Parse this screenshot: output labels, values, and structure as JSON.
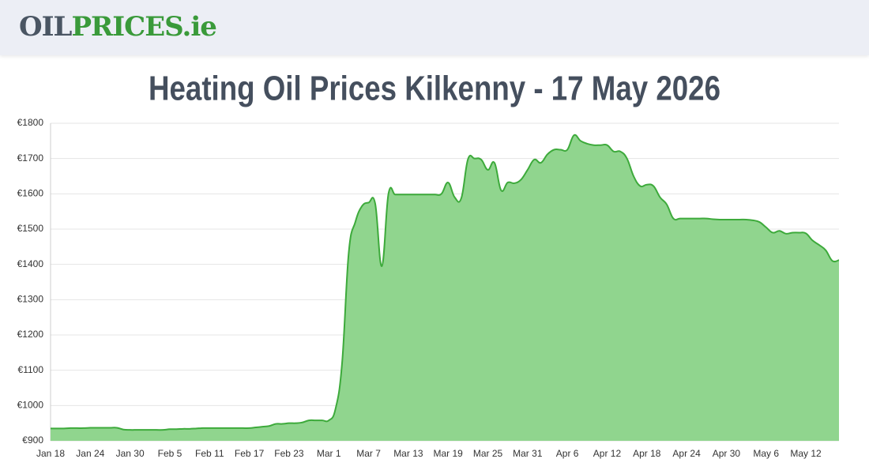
{
  "logo": {
    "part1": "OIL",
    "part2": "PRICES",
    "part3": ".ie"
  },
  "chart_data": {
    "type": "area",
    "title": "Heating Oil Prices Kilkenny - 17 May 2026",
    "color": "#3daa3b",
    "fill": "#90d58e",
    "grid": true,
    "ylim": [
      900,
      1800
    ],
    "yticks": [
      {
        "value": 900,
        "label": "€900"
      },
      {
        "value": 1000,
        "label": "€1000"
      },
      {
        "value": 1100,
        "label": "€1100"
      },
      {
        "value": 1200,
        "label": "€1200"
      },
      {
        "value": 1300,
        "label": "€1300"
      },
      {
        "value": 1400,
        "label": "€1400"
      },
      {
        "value": 1500,
        "label": "€1500"
      },
      {
        "value": 1600,
        "label": "€1600"
      },
      {
        "value": 1700,
        "label": "€1700"
      },
      {
        "value": 1800,
        "label": "€1800"
      }
    ],
    "categories": [
      "Jan 18",
      null,
      null,
      null,
      null,
      null,
      "Jan 24",
      null,
      null,
      null,
      null,
      null,
      "Jan 30",
      null,
      null,
      null,
      null,
      null,
      "Feb 5",
      null,
      null,
      null,
      null,
      null,
      "Feb 11",
      null,
      null,
      null,
      null,
      null,
      "Feb 17",
      null,
      null,
      null,
      null,
      null,
      "Feb 23",
      null,
      null,
      null,
      null,
      null,
      "Mar 1",
      null,
      null,
      null,
      null,
      null,
      "Mar 7",
      null,
      null,
      null,
      null,
      null,
      "Mar 13",
      null,
      null,
      null,
      null,
      null,
      "Mar 19",
      null,
      null,
      null,
      null,
      null,
      "Mar 25",
      null,
      null,
      null,
      null,
      null,
      "Mar 31",
      null,
      null,
      null,
      null,
      null,
      "Apr 6",
      null,
      null,
      null,
      null,
      null,
      "Apr 12",
      null,
      null,
      null,
      null,
      null,
      "Apr 18",
      null,
      null,
      null,
      null,
      null,
      "Apr 24",
      null,
      null,
      null,
      null,
      null,
      "Apr 30",
      null,
      null,
      null,
      null,
      null,
      "May 6",
      null,
      null,
      null,
      null,
      null,
      "May 12",
      null,
      null,
      null,
      null,
      null
    ],
    "values": [
      935,
      935,
      935,
      936,
      936,
      936,
      937,
      937,
      937,
      937,
      937,
      932,
      931,
      931,
      931,
      931,
      931,
      931,
      933,
      933,
      934,
      934,
      935,
      936,
      936,
      936,
      936,
      936,
      936,
      936,
      936,
      938,
      940,
      942,
      948,
      948,
      950,
      950,
      952,
      958,
      958,
      958,
      958,
      990,
      1120,
      1432,
      1520,
      1565,
      1575,
      1572,
      1395,
      1600,
      1598,
      1598,
      1598,
      1598,
      1598,
      1598,
      1598,
      1600,
      1632,
      1590,
      1588,
      1698,
      1700,
      1697,
      1668,
      1688,
      1610,
      1632,
      1630,
      1640,
      1668,
      1697,
      1688,
      1712,
      1725,
      1725,
      1725,
      1766,
      1750,
      1742,
      1738,
      1738,
      1738,
      1720,
      1720,
      1700,
      1650,
      1622,
      1626,
      1622,
      1590,
      1570,
      1530,
      1530,
      1530,
      1530,
      1530,
      1530,
      1528,
      1527,
      1527,
      1527,
      1527,
      1527,
      1525,
      1520,
      1505,
      1490,
      1495,
      1487,
      1490,
      1490,
      1488,
      1468,
      1455,
      1440,
      1410,
      1412
    ]
  }
}
